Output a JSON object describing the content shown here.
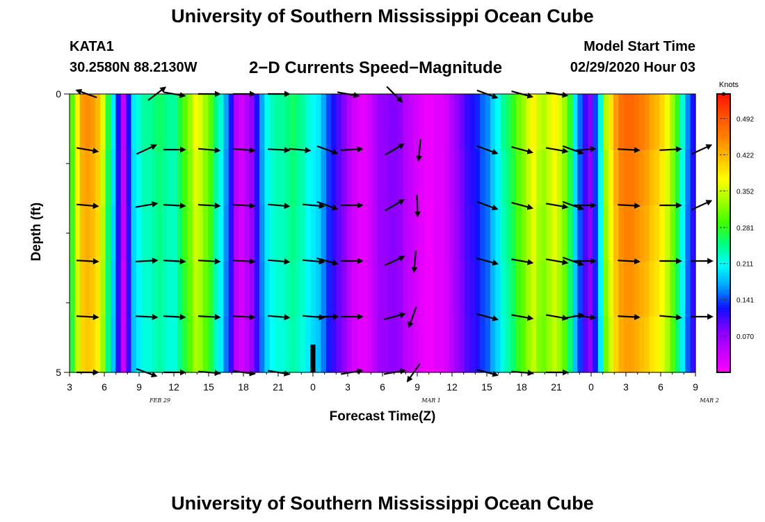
{
  "page": {
    "title_top": "University of Southern Mississippi Ocean Cube",
    "title_bottom": "University of Southern Mississippi Ocean Cube",
    "station_id": "KATA1",
    "coordinates": "30.2580N 88.2130W",
    "plot_title": "2−D Currents Speed−Magnitude",
    "model_start_label": "Model Start Time",
    "model_start_value": "02/29/2020 Hour 03"
  },
  "chart_data": {
    "type": "heatmap",
    "title": "2−D Currents Speed−Magnitude",
    "xlabel": "Forecast Time(Z)",
    "ylabel": "Depth (ft)",
    "xlim": [
      3,
      57
    ],
    "ylim": [
      0,
      5
    ],
    "y_ticks": [
      {
        "value": 0,
        "label": "0"
      },
      {
        "value": 5,
        "label": "5"
      }
    ],
    "y_minor_ticks": [
      1.25,
      2.5,
      3.75
    ],
    "x_ticks": [
      {
        "hour": 3,
        "label": "3"
      },
      {
        "hour": 6,
        "label": "6"
      },
      {
        "hour": 9,
        "label": "9"
      },
      {
        "hour": 12,
        "label": "12"
      },
      {
        "hour": 15,
        "label": "15"
      },
      {
        "hour": 18,
        "label": "18"
      },
      {
        "hour": 21,
        "label": "21"
      },
      {
        "hour": 24,
        "label": "0"
      },
      {
        "hour": 27,
        "label": "3"
      },
      {
        "hour": 30,
        "label": "6"
      },
      {
        "hour": 33,
        "label": "9"
      },
      {
        "hour": 36,
        "label": "12"
      },
      {
        "hour": 39,
        "label": "15"
      },
      {
        "hour": 42,
        "label": "18"
      },
      {
        "hour": 45,
        "label": "21"
      },
      {
        "hour": 48,
        "label": "0"
      },
      {
        "hour": 51,
        "label": "3"
      },
      {
        "hour": 54,
        "label": "6"
      },
      {
        "hour": 57,
        "label": "9"
      }
    ],
    "date_labels": [
      {
        "hour": 10.8,
        "label": "FEB 29"
      },
      {
        "hour": 34.2,
        "label": "MAR 1"
      },
      {
        "hour": 58.2,
        "label": "MAR 2"
      }
    ],
    "now_marker_hour": 24,
    "speed_knots": [
      0.3,
      0.38,
      0.44,
      0.45,
      0.44,
      0.42,
      0.36,
      0.27,
      0.2,
      0.12,
      0.04,
      0.12,
      0.2,
      0.22,
      0.24,
      0.24,
      0.25,
      0.26,
      0.25,
      0.24,
      0.24,
      0.27,
      0.3,
      0.33,
      0.37,
      0.36,
      0.33,
      0.3,
      0.25,
      0.22,
      0.17,
      0.12,
      0.05,
      0.03,
      0.05,
      0.07,
      0.12,
      0.17,
      0.21,
      0.23,
      0.24,
      0.24,
      0.25,
      0.26,
      0.25,
      0.24,
      0.22,
      0.21,
      0.2,
      0.17,
      0.14,
      0.12,
      0.1,
      0.08,
      0.05,
      0.03,
      0.02,
      0.02,
      0.03,
      0.05,
      0.07,
      0.07,
      0.08,
      0.08,
      0.07,
      0.05,
      0.04,
      0.03,
      0.02,
      0.01,
      0.01,
      0.02,
      0.02,
      0.03,
      0.05,
      0.07,
      0.09,
      0.11,
      0.12,
      0.13,
      0.15,
      0.16,
      0.19,
      0.21,
      0.24,
      0.26,
      0.28,
      0.31,
      0.33,
      0.36,
      0.38,
      0.35,
      0.34,
      0.36,
      0.38,
      0.36,
      0.33,
      0.28,
      0.2,
      0.15,
      0.11,
      0.08,
      0.14,
      0.22,
      0.34,
      0.39,
      0.44,
      0.47,
      0.48,
      0.48,
      0.47,
      0.46,
      0.45,
      0.43,
      0.42,
      0.4,
      0.37,
      0.33,
      0.28,
      0.22,
      0.16,
      0.12
    ],
    "depth_factors": [
      1.0,
      0.97,
      0.95,
      0.93,
      0.91
    ],
    "colorbar": {
      "unit": "Knots",
      "min": 0.0,
      "max": 0.54,
      "tick_values": [
        0.07,
        0.141,
        0.211,
        0.281,
        0.352,
        0.422,
        0.492
      ],
      "tick_labels": [
        "0.070",
        "0.141",
        "0.211",
        "0.281",
        "0.352",
        "0.422",
        "0.492"
      ],
      "colors": [
        "#ff00ff",
        "#c000ff",
        "#8000ff",
        "#1010ff",
        "#00a0ff",
        "#00ffff",
        "#00ff80",
        "#40ff00",
        "#a0ff00",
        "#ffff00",
        "#ffc000",
        "#ff8000",
        "#ff5000",
        "#ff1000"
      ]
    },
    "vector_depths": [
      0,
      1,
      2,
      3,
      4,
      5
    ],
    "vector_rows": [
      [
        [
          4.5,
          160
        ],
        [
          10.5,
          37
        ],
        [
          12,
          -10
        ],
        [
          15,
          0
        ],
        [
          18,
          0
        ],
        [
          21,
          0
        ],
        [
          27,
          -10
        ],
        [
          31,
          -45
        ],
        [
          39,
          -20
        ],
        [
          42,
          -15
        ],
        [
          45,
          -8
        ]
      ],
      [
        [
          4.5,
          -10
        ],
        [
          9.6,
          25
        ],
        [
          12,
          0
        ],
        [
          15,
          -5
        ],
        [
          18,
          -5
        ],
        [
          21,
          -3
        ],
        [
          22.8,
          -5
        ],
        [
          25.2,
          -20
        ],
        [
          27.3,
          3
        ],
        [
          31,
          30
        ],
        [
          33.2,
          -95
        ],
        [
          39,
          -20
        ],
        [
          42,
          -15
        ],
        [
          45,
          -10
        ],
        [
          46.4,
          -20
        ],
        [
          47.4,
          5
        ],
        [
          51.2,
          -3
        ],
        [
          54.8,
          3
        ],
        [
          57.5,
          25
        ]
      ],
      [
        [
          4.5,
          -5
        ],
        [
          9.6,
          10
        ],
        [
          12,
          -3
        ],
        [
          15,
          -3
        ],
        [
          18,
          -3
        ],
        [
          21,
          -5
        ],
        [
          24,
          -5
        ],
        [
          25.2,
          -20
        ],
        [
          27.3,
          0
        ],
        [
          31,
          30
        ],
        [
          33,
          -88
        ],
        [
          39,
          -20
        ],
        [
          42,
          -15
        ],
        [
          45,
          -10
        ],
        [
          46.4,
          -20
        ],
        [
          47.4,
          0
        ],
        [
          51.2,
          -3
        ],
        [
          54.8,
          0
        ],
        [
          57.5,
          25
        ]
      ],
      [
        [
          4.5,
          -3
        ],
        [
          9.6,
          3
        ],
        [
          12,
          -3
        ],
        [
          15,
          -3
        ],
        [
          18,
          -3
        ],
        [
          21,
          -5
        ],
        [
          24,
          -5
        ],
        [
          25.2,
          -15
        ],
        [
          27.3,
          0
        ],
        [
          31,
          25
        ],
        [
          32.8,
          -95
        ],
        [
          39,
          -15
        ],
        [
          42,
          -10
        ],
        [
          45,
          -10
        ],
        [
          46.4,
          -20
        ],
        [
          47.4,
          0
        ],
        [
          51.2,
          -3
        ],
        [
          54.8,
          0
        ],
        [
          57.5,
          0
        ]
      ],
      [
        [
          4.5,
          -3
        ],
        [
          9.6,
          -3
        ],
        [
          12,
          -3
        ],
        [
          15,
          -3
        ],
        [
          18,
          -3
        ],
        [
          21,
          -5
        ],
        [
          24,
          -5
        ],
        [
          25.2,
          0
        ],
        [
          27.3,
          0
        ],
        [
          31,
          15
        ],
        [
          32.6,
          -110
        ],
        [
          39,
          -15
        ],
        [
          42,
          -10
        ],
        [
          45,
          -10
        ],
        [
          46.4,
          10
        ],
        [
          47.4,
          -5
        ],
        [
          51.2,
          -3
        ],
        [
          54.8,
          -5
        ],
        [
          57.5,
          0
        ]
      ],
      [
        [
          4.5,
          0
        ],
        [
          9.6,
          -20
        ],
        [
          12,
          0
        ],
        [
          15,
          -5
        ],
        [
          18,
          -8
        ],
        [
          21,
          -10
        ],
        [
          27.3,
          10
        ],
        [
          31,
          10
        ],
        [
          32.7,
          -125
        ],
        [
          39,
          -15
        ],
        [
          42,
          -5
        ],
        [
          45,
          0
        ]
      ]
    ]
  }
}
